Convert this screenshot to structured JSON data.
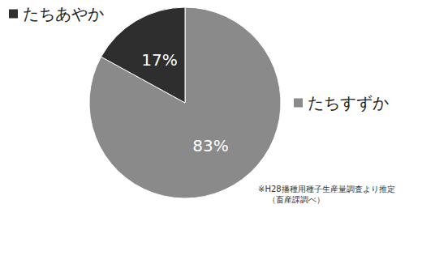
{
  "chart_data": {
    "type": "pie",
    "categories": [
      "たちすずか",
      "たちあやか"
    ],
    "values": [
      83,
      17
    ],
    "value_labels": [
      "83%",
      "17%"
    ],
    "colors": [
      "#8a8a8a",
      "#2e2e2e"
    ],
    "data_labels": true,
    "annotations": [
      "※H28播種用種子生産量調査より推定",
      "（畜産課調べ）"
    ]
  }
}
